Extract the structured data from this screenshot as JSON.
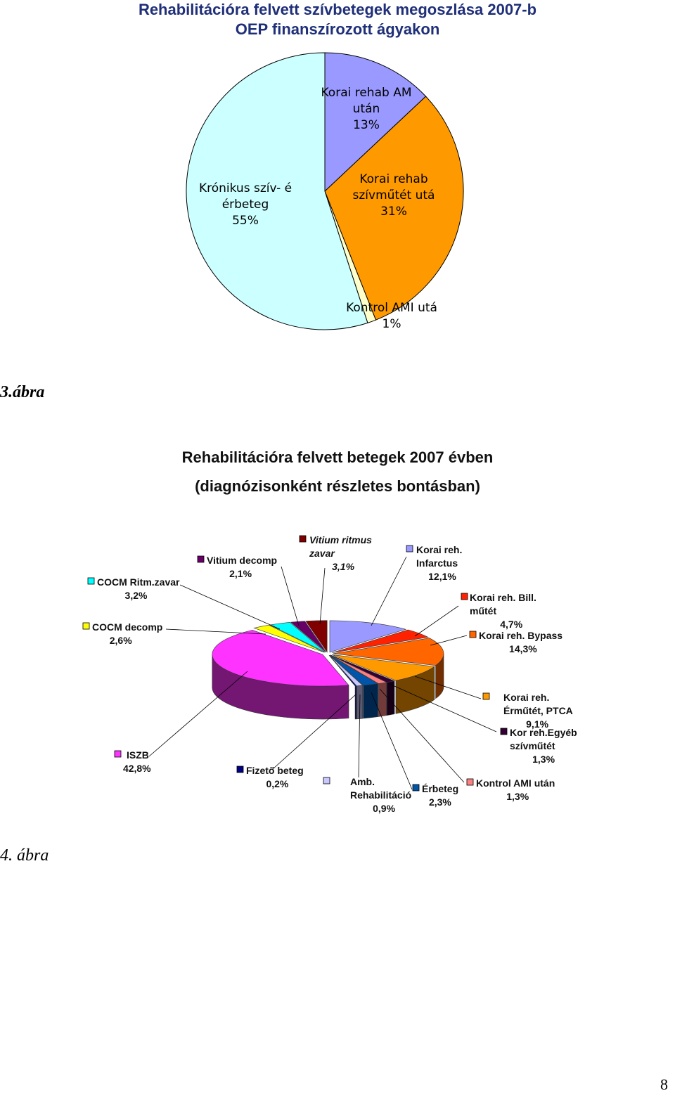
{
  "chart_data": [
    {
      "type": "pie",
      "title": [
        "Rehabilitációra felvett szívbetegek megoszlása 2007-b",
        "OEP finanszírozott ágyakon"
      ],
      "slices": [
        {
          "label": [
            "Korai rehab AM",
            "után"
          ],
          "value": 13,
          "pct": "13%",
          "color": "#9999ff"
        },
        {
          "label": [
            "Korai rehab",
            "szívműtét utá"
          ],
          "value": 31,
          "pct": "31%",
          "color": "#ff9900"
        },
        {
          "label": [
            "Kontrol AMI utá"
          ],
          "value": 1,
          "pct": "1%",
          "color": "#ffffcc"
        },
        {
          "label": [
            "Krónikus szív- é",
            "érbeteg"
          ],
          "value": 55,
          "pct": "55%",
          "color": "#ccffff"
        }
      ]
    },
    {
      "type": "pie",
      "title": [
        "Rehabilitációra felvett betegek 2007 évben",
        "(diagnózisonként részletes bontásban)"
      ],
      "slices": [
        {
          "label": [
            "Korai reh.",
            "Infarctus"
          ],
          "pct": "12,1%",
          "value": 12.1,
          "color": "#9999ff"
        },
        {
          "label": [
            "Korai reh. Bill.",
            "műtét"
          ],
          "pct": "4,7%",
          "value": 4.7,
          "color": "#ff2200"
        },
        {
          "label": [
            "Korai reh. Bypass"
          ],
          "pct": "14,3%",
          "value": 14.3,
          "color": "#ff6600"
        },
        {
          "label": [
            "Korai reh.",
            "Érműtét, PTCA"
          ],
          "pct": "9,1%",
          "value": 9.1,
          "color": "#ff9900"
        },
        {
          "label": [
            "Kor reh.Egyéb",
            "szívműtét"
          ],
          "pct": "1,3%",
          "value": 1.3,
          "color": "#330033"
        },
        {
          "label": [
            "Kontrol AMI után"
          ],
          "pct": "1,3%",
          "value": 1.3,
          "color": "#ff8080"
        },
        {
          "label": [
            "Érbeteg"
          ],
          "pct": "2,3%",
          "value": 2.3,
          "color": "#0055aa"
        },
        {
          "label": [
            "Amb.",
            "Rehabilitáció"
          ],
          "pct": "0,9%",
          "value": 0.9,
          "color": "#c8c8ff"
        },
        {
          "label": [
            "Fizető beteg"
          ],
          "pct": "0,2%",
          "value": 0.2,
          "color": "#000080"
        },
        {
          "label": [
            "ISZB"
          ],
          "pct": "42,8%",
          "value": 42.8,
          "color": "#ff33ff"
        },
        {
          "label": [
            "COCM decomp"
          ],
          "pct": "2,6%",
          "value": 2.6,
          "color": "#ffff00"
        },
        {
          "label": [
            "COCM Ritm.zavar"
          ],
          "pct": "3,2%",
          "value": 3.2,
          "color": "#00ffff"
        },
        {
          "label": [
            "Vitium decomp"
          ],
          "pct": "2,1%",
          "value": 2.1,
          "color": "#660066"
        },
        {
          "label": [
            "Vitium ritmus",
            "zavar"
          ],
          "pct": "3,1%",
          "value": 3.1,
          "color": "#800000"
        }
      ]
    }
  ],
  "captions": {
    "fig3": "3.ábra",
    "fig4": "4. ábra"
  },
  "page_number": "8"
}
